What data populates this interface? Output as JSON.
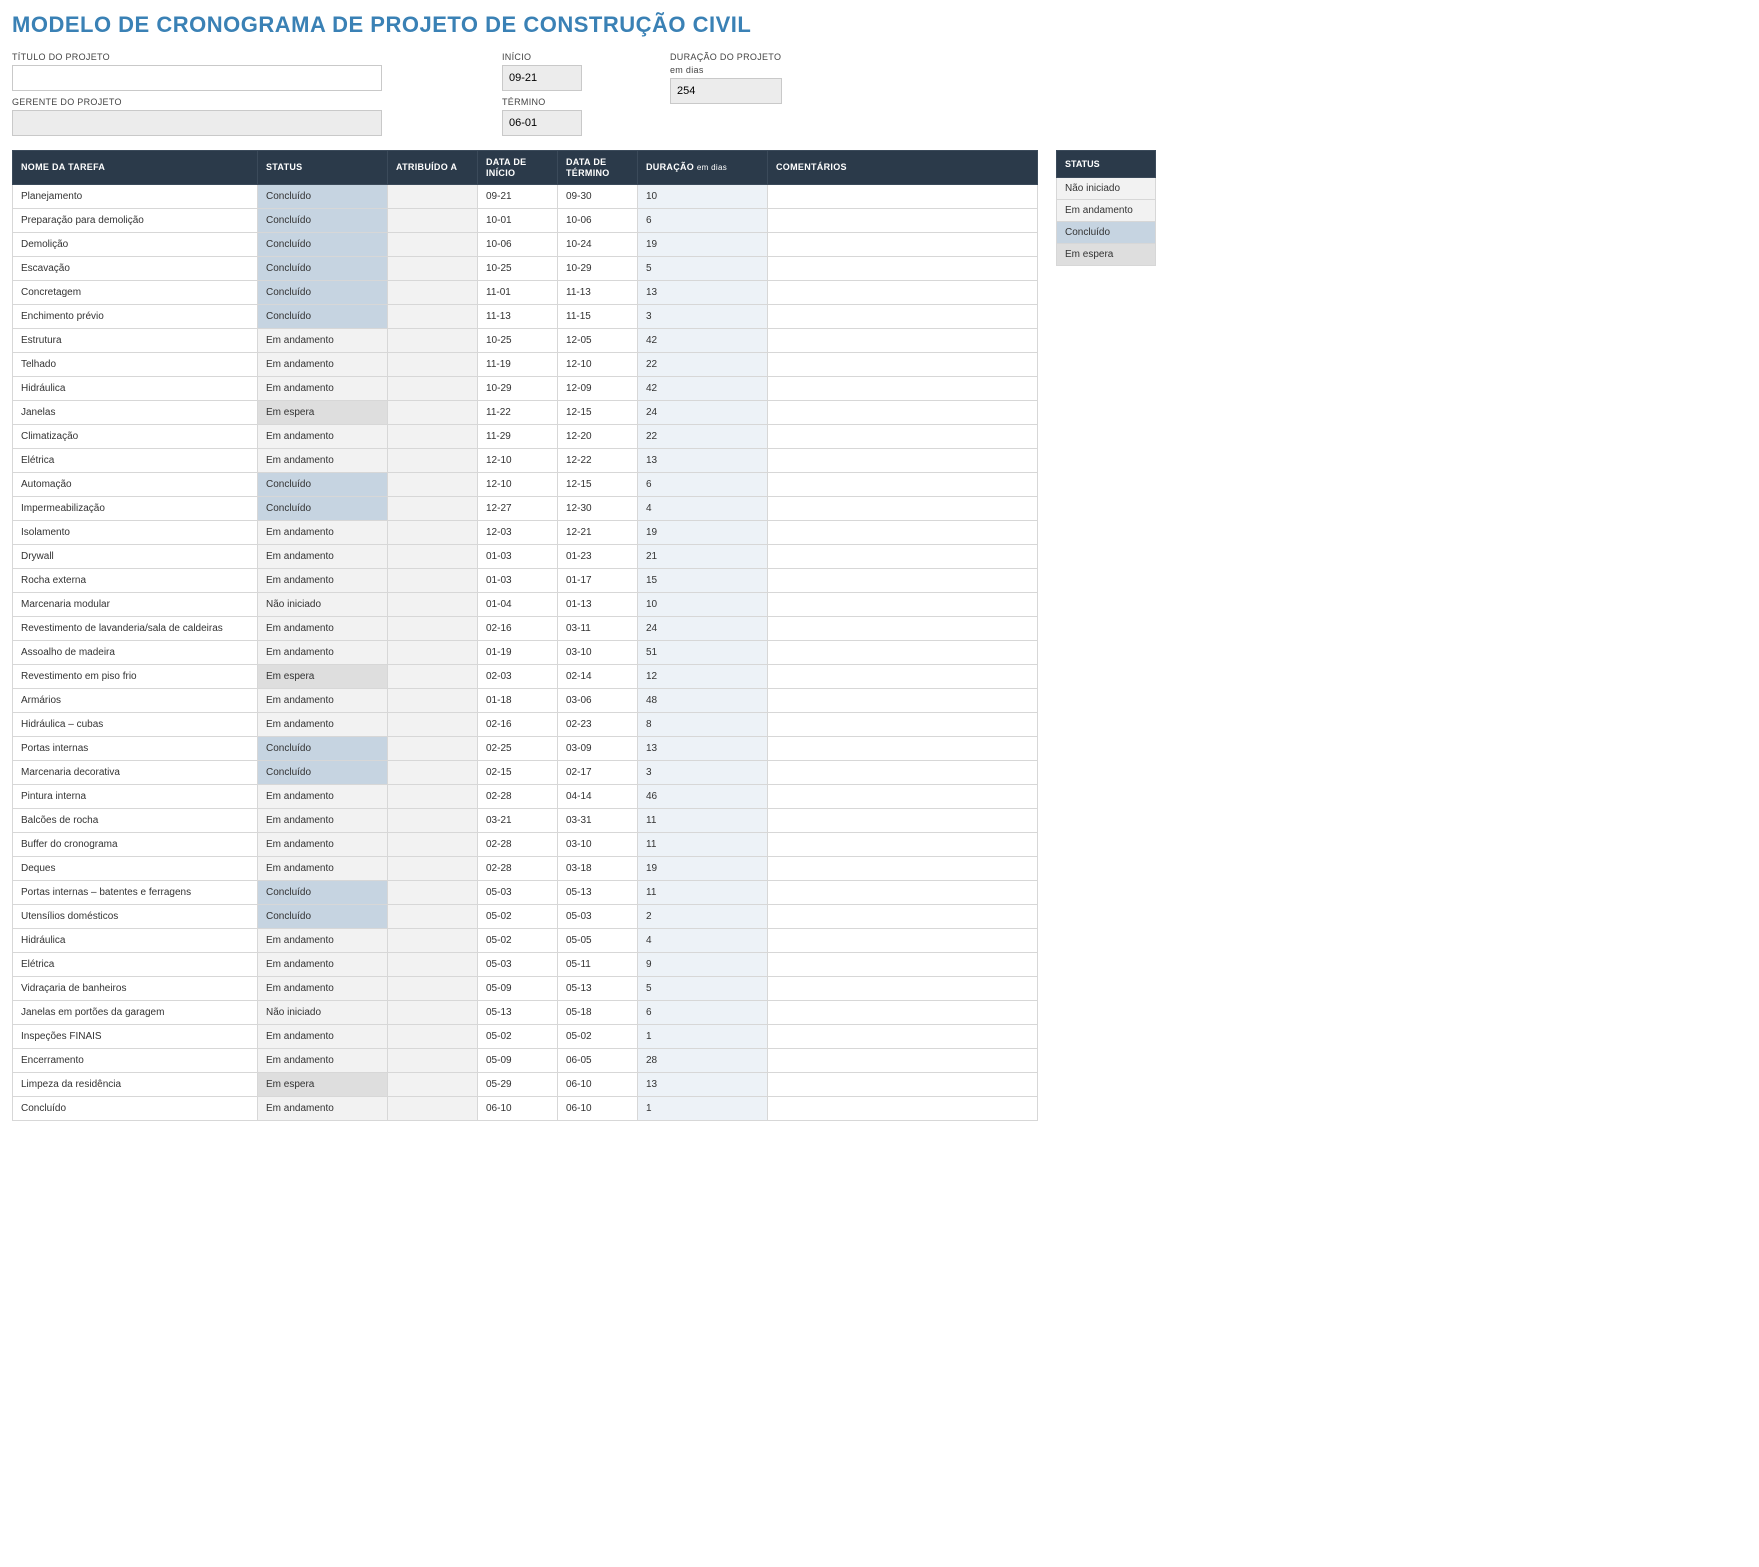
{
  "title": "MODELO DE CRONOGRAMA DE PROJETO DE CONSTRUÇÃO CIVIL",
  "colors": {
    "title": "#3a81b5",
    "header_bg": "#2b3a4a",
    "header_text": "#ffffff",
    "border": "#d7d7d7",
    "dur_col_bg": "#edf2f7",
    "assign_col_bg": "#f2f2f2",
    "status_colors": {
      "Não iniciado": "#f2f2f2",
      "Em andamento": "#f2f2f2",
      "Concluído": "#c6d4e1",
      "Em espera": "#dedede"
    }
  },
  "meta": {
    "labels": {
      "project_title": "TÍTULO DO PROJETO",
      "project_manager": "GERENTE DO PROJETO",
      "start": "INÍCIO",
      "end": "TÉRMINO",
      "duration": "DURAÇÃO DO PROJETO",
      "duration_unit": "em dias"
    },
    "values": {
      "project_title": "",
      "project_manager": "",
      "start": "09-21",
      "end": "06-01",
      "duration": "254"
    }
  },
  "columns": {
    "task": "NOME DA TAREFA",
    "status": "STATUS",
    "assigned": "ATRIBUÍDO A",
    "start": "DATA DE INÍCIO",
    "end": "DATA DE TÉRMINO",
    "duration": "DURAÇÃO",
    "duration_unit": "em dias",
    "comments": "COMENTÁRIOS"
  },
  "legend": {
    "header": "STATUS",
    "items": [
      "Não iniciado",
      "Em andamento",
      "Concluído",
      "Em espera"
    ]
  },
  "rows": [
    {
      "task": "Planejamento",
      "status": "Concluído",
      "assigned": "",
      "start": "09-21",
      "end": "09-30",
      "duration": "10",
      "comments": ""
    },
    {
      "task": "Preparação para demolição",
      "status": "Concluído",
      "assigned": "",
      "start": "10-01",
      "end": "10-06",
      "duration": "6",
      "comments": ""
    },
    {
      "task": "Demolição",
      "status": "Concluído",
      "assigned": "",
      "start": "10-06",
      "end": "10-24",
      "duration": "19",
      "comments": ""
    },
    {
      "task": "Escavação",
      "status": "Concluído",
      "assigned": "",
      "start": "10-25",
      "end": "10-29",
      "duration": "5",
      "comments": ""
    },
    {
      "task": "Concretagem",
      "status": "Concluído",
      "assigned": "",
      "start": "11-01",
      "end": "11-13",
      "duration": "13",
      "comments": ""
    },
    {
      "task": "Enchimento prévio",
      "status": "Concluído",
      "assigned": "",
      "start": "11-13",
      "end": "11-15",
      "duration": "3",
      "comments": ""
    },
    {
      "task": "Estrutura",
      "status": "Em andamento",
      "assigned": "",
      "start": "10-25",
      "end": "12-05",
      "duration": "42",
      "comments": ""
    },
    {
      "task": "Telhado",
      "status": "Em andamento",
      "assigned": "",
      "start": "11-19",
      "end": "12-10",
      "duration": "22",
      "comments": ""
    },
    {
      "task": "Hidráulica",
      "status": "Em andamento",
      "assigned": "",
      "start": "10-29",
      "end": "12-09",
      "duration": "42",
      "comments": ""
    },
    {
      "task": "Janelas",
      "status": "Em espera",
      "assigned": "",
      "start": "11-22",
      "end": "12-15",
      "duration": "24",
      "comments": ""
    },
    {
      "task": "Climatização",
      "status": "Em andamento",
      "assigned": "",
      "start": "11-29",
      "end": "12-20",
      "duration": "22",
      "comments": ""
    },
    {
      "task": "Elétrica",
      "status": "Em andamento",
      "assigned": "",
      "start": "12-10",
      "end": "12-22",
      "duration": "13",
      "comments": ""
    },
    {
      "task": "Automação",
      "status": "Concluído",
      "assigned": "",
      "start": "12-10",
      "end": "12-15",
      "duration": "6",
      "comments": ""
    },
    {
      "task": "Impermeabilização",
      "status": "Concluído",
      "assigned": "",
      "start": "12-27",
      "end": "12-30",
      "duration": "4",
      "comments": ""
    },
    {
      "task": "Isolamento",
      "status": "Em andamento",
      "assigned": "",
      "start": "12-03",
      "end": "12-21",
      "duration": "19",
      "comments": ""
    },
    {
      "task": "Drywall",
      "status": "Em andamento",
      "assigned": "",
      "start": "01-03",
      "end": "01-23",
      "duration": "21",
      "comments": ""
    },
    {
      "task": "Rocha externa",
      "status": "Em andamento",
      "assigned": "",
      "start": "01-03",
      "end": "01-17",
      "duration": "15",
      "comments": ""
    },
    {
      "task": "Marcenaria modular",
      "status": "Não iniciado",
      "assigned": "",
      "start": "01-04",
      "end": "01-13",
      "duration": "10",
      "comments": ""
    },
    {
      "task": "Revestimento de lavanderia/sala de caldeiras",
      "status": "Em andamento",
      "assigned": "",
      "start": "02-16",
      "end": "03-11",
      "duration": "24",
      "comments": ""
    },
    {
      "task": "Assoalho de madeira",
      "status": "Em andamento",
      "assigned": "",
      "start": "01-19",
      "end": "03-10",
      "duration": "51",
      "comments": ""
    },
    {
      "task": "Revestimento em piso frio",
      "status": "Em espera",
      "assigned": "",
      "start": "02-03",
      "end": "02-14",
      "duration": "12",
      "comments": ""
    },
    {
      "task": "Armários",
      "status": "Em andamento",
      "assigned": "",
      "start": "01-18",
      "end": "03-06",
      "duration": "48",
      "comments": ""
    },
    {
      "task": "Hidráulica – cubas",
      "status": "Em andamento",
      "assigned": "",
      "start": "02-16",
      "end": "02-23",
      "duration": "8",
      "comments": ""
    },
    {
      "task": "Portas internas",
      "status": "Concluído",
      "assigned": "",
      "start": "02-25",
      "end": "03-09",
      "duration": "13",
      "comments": ""
    },
    {
      "task": "Marcenaria decorativa",
      "status": "Concluído",
      "assigned": "",
      "start": "02-15",
      "end": "02-17",
      "duration": "3",
      "comments": ""
    },
    {
      "task": "Pintura interna",
      "status": "Em andamento",
      "assigned": "",
      "start": "02-28",
      "end": "04-14",
      "duration": "46",
      "comments": ""
    },
    {
      "task": "Balcões de rocha",
      "status": "Em andamento",
      "assigned": "",
      "start": "03-21",
      "end": "03-31",
      "duration": "11",
      "comments": ""
    },
    {
      "task": "Buffer do cronograma",
      "status": "Em andamento",
      "assigned": "",
      "start": "02-28",
      "end": "03-10",
      "duration": "11",
      "comments": ""
    },
    {
      "task": "Deques",
      "status": "Em andamento",
      "assigned": "",
      "start": "02-28",
      "end": "03-18",
      "duration": "19",
      "comments": ""
    },
    {
      "task": "Portas internas – batentes e ferragens",
      "status": "Concluído",
      "assigned": "",
      "start": "05-03",
      "end": "05-13",
      "duration": "11",
      "comments": ""
    },
    {
      "task": "Utensílios domésticos",
      "status": "Concluído",
      "assigned": "",
      "start": "05-02",
      "end": "05-03",
      "duration": "2",
      "comments": ""
    },
    {
      "task": "Hidráulica",
      "status": "Em andamento",
      "assigned": "",
      "start": "05-02",
      "end": "05-05",
      "duration": "4",
      "comments": ""
    },
    {
      "task": "Elétrica",
      "status": "Em andamento",
      "assigned": "",
      "start": "05-03",
      "end": "05-11",
      "duration": "9",
      "comments": ""
    },
    {
      "task": "Vidraçaria de banheiros",
      "status": "Em andamento",
      "assigned": "",
      "start": "05-09",
      "end": "05-13",
      "duration": "5",
      "comments": ""
    },
    {
      "task": "Janelas em portões da garagem",
      "status": "Não iniciado",
      "assigned": "",
      "start": "05-13",
      "end": "05-18",
      "duration": "6",
      "comments": ""
    },
    {
      "task": "Inspeções FINAIS",
      "status": "Em andamento",
      "assigned": "",
      "start": "05-02",
      "end": "05-02",
      "duration": "1",
      "comments": ""
    },
    {
      "task": "Encerramento",
      "status": "Em andamento",
      "assigned": "",
      "start": "05-09",
      "end": "06-05",
      "duration": "28",
      "comments": ""
    },
    {
      "task": "Limpeza da residência",
      "status": "Em espera",
      "assigned": "",
      "start": "05-29",
      "end": "06-10",
      "duration": "13",
      "comments": ""
    },
    {
      "task": "Concluído",
      "status": "Em andamento",
      "assigned": "",
      "start": "06-10",
      "end": "06-10",
      "duration": "1",
      "comments": ""
    }
  ]
}
